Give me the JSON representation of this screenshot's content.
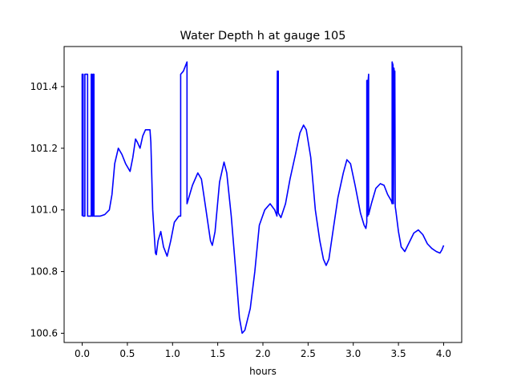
{
  "chart_data": {
    "type": "line",
    "title": "Water Depth h at gauge 105",
    "xlabel": "hours",
    "ylabel": "",
    "xlim": [
      -0.2,
      4.2
    ],
    "ylim": [
      100.57,
      101.53
    ],
    "x_ticks": [
      {
        "value": 0.0,
        "label": "0.0"
      },
      {
        "value": 0.5,
        "label": "0.5"
      },
      {
        "value": 1.0,
        "label": "1.0"
      },
      {
        "value": 1.5,
        "label": "1.5"
      },
      {
        "value": 2.0,
        "label": "2.0"
      },
      {
        "value": 2.5,
        "label": "2.5"
      },
      {
        "value": 3.0,
        "label": "3.0"
      },
      {
        "value": 3.5,
        "label": "3.5"
      },
      {
        "value": 4.0,
        "label": "4.0"
      }
    ],
    "y_ticks": [
      {
        "value": 100.6,
        "label": "100.6"
      },
      {
        "value": 100.8,
        "label": "100.8"
      },
      {
        "value": 101.0,
        "label": "101.0"
      },
      {
        "value": 101.2,
        "label": "101.2"
      },
      {
        "value": 101.4,
        "label": "101.4"
      }
    ],
    "grid": false,
    "legend": "none",
    "series": [
      {
        "color": "#0000ff",
        "points": [
          [
            0.0,
            100.98
          ],
          [
            0.0,
            101.44
          ],
          [
            0.01,
            101.44
          ],
          [
            0.01,
            100.98
          ],
          [
            0.03,
            100.98
          ],
          [
            0.03,
            101.44
          ],
          [
            0.06,
            101.44
          ],
          [
            0.06,
            100.98
          ],
          [
            0.1,
            100.98
          ],
          [
            0.1,
            101.44
          ],
          [
            0.11,
            101.44
          ],
          [
            0.11,
            100.98
          ],
          [
            0.12,
            100.98
          ],
          [
            0.12,
            101.44
          ],
          [
            0.13,
            101.44
          ],
          [
            0.13,
            100.98
          ],
          [
            0.2,
            100.98
          ],
          [
            0.25,
            100.985
          ],
          [
            0.3,
            101.0
          ],
          [
            0.33,
            101.05
          ],
          [
            0.36,
            101.15
          ],
          [
            0.4,
            101.2
          ],
          [
            0.44,
            101.18
          ],
          [
            0.48,
            101.15
          ],
          [
            0.53,
            101.125
          ],
          [
            0.56,
            101.17
          ],
          [
            0.59,
            101.23
          ],
          [
            0.61,
            101.22
          ],
          [
            0.64,
            101.2
          ],
          [
            0.67,
            101.24
          ],
          [
            0.7,
            101.26
          ],
          [
            0.75,
            101.26
          ],
          [
            0.76,
            101.22
          ],
          [
            0.78,
            101.0
          ],
          [
            0.81,
            100.86
          ],
          [
            0.82,
            100.855
          ],
          [
            0.84,
            100.9
          ],
          [
            0.87,
            100.93
          ],
          [
            0.9,
            100.88
          ],
          [
            0.94,
            100.85
          ],
          [
            0.98,
            100.9
          ],
          [
            1.02,
            100.96
          ],
          [
            1.07,
            100.98
          ],
          [
            1.08,
            100.98
          ],
          [
            1.09,
            100.98
          ],
          [
            1.09,
            101.44
          ],
          [
            1.12,
            101.45
          ],
          [
            1.16,
            101.48
          ],
          [
            1.16,
            101.02
          ],
          [
            1.22,
            101.08
          ],
          [
            1.28,
            101.12
          ],
          [
            1.32,
            101.1
          ],
          [
            1.37,
            101.0
          ],
          [
            1.42,
            100.9
          ],
          [
            1.44,
            100.885
          ],
          [
            1.47,
            100.93
          ],
          [
            1.52,
            101.09
          ],
          [
            1.57,
            101.155
          ],
          [
            1.6,
            101.12
          ],
          [
            1.65,
            100.98
          ],
          [
            1.7,
            100.8
          ],
          [
            1.74,
            100.65
          ],
          [
            1.77,
            100.6
          ],
          [
            1.8,
            100.61
          ],
          [
            1.86,
            100.68
          ],
          [
            1.91,
            100.8
          ],
          [
            1.96,
            100.95
          ],
          [
            2.02,
            101.0
          ],
          [
            2.08,
            101.02
          ],
          [
            2.13,
            101.0
          ],
          [
            2.155,
            100.98
          ],
          [
            2.16,
            101.45
          ],
          [
            2.17,
            101.45
          ],
          [
            2.17,
            100.99
          ],
          [
            2.2,
            100.975
          ],
          [
            2.25,
            101.02
          ],
          [
            2.3,
            101.1
          ],
          [
            2.36,
            101.18
          ],
          [
            2.41,
            101.25
          ],
          [
            2.45,
            101.275
          ],
          [
            2.48,
            101.26
          ],
          [
            2.53,
            101.17
          ],
          [
            2.58,
            101.0
          ],
          [
            2.63,
            100.9
          ],
          [
            2.67,
            100.84
          ],
          [
            2.7,
            100.82
          ],
          [
            2.73,
            100.84
          ],
          [
            2.78,
            100.94
          ],
          [
            2.83,
            101.04
          ],
          [
            2.89,
            101.12
          ],
          [
            2.93,
            101.163
          ],
          [
            2.97,
            101.15
          ],
          [
            3.02,
            101.08
          ],
          [
            3.08,
            100.99
          ],
          [
            3.12,
            100.95
          ],
          [
            3.14,
            100.94
          ],
          [
            3.15,
            100.96
          ],
          [
            3.15,
            101.42
          ],
          [
            3.155,
            101.42
          ],
          [
            3.16,
            100.98
          ],
          [
            3.165,
            101.42
          ],
          [
            3.17,
            101.44
          ],
          [
            3.17,
            100.985
          ],
          [
            3.2,
            101.02
          ],
          [
            3.25,
            101.07
          ],
          [
            3.3,
            101.085
          ],
          [
            3.34,
            101.08
          ],
          [
            3.38,
            101.05
          ],
          [
            3.42,
            101.03
          ],
          [
            3.43,
            101.02
          ],
          [
            3.43,
            101.48
          ],
          [
            3.44,
            101.47
          ],
          [
            3.445,
            101.02
          ],
          [
            3.45,
            101.46
          ],
          [
            3.455,
            101.44
          ],
          [
            3.46,
            101.45
          ],
          [
            3.465,
            101.01
          ],
          [
            3.47,
            101.0
          ],
          [
            3.5,
            100.93
          ],
          [
            3.53,
            100.88
          ],
          [
            3.57,
            100.865
          ],
          [
            3.62,
            100.895
          ],
          [
            3.67,
            100.925
          ],
          [
            3.72,
            100.935
          ],
          [
            3.77,
            100.92
          ],
          [
            3.82,
            100.89
          ],
          [
            3.87,
            100.875
          ],
          [
            3.92,
            100.865
          ],
          [
            3.96,
            100.86
          ],
          [
            3.98,
            100.87
          ],
          [
            4.0,
            100.885
          ]
        ]
      }
    ]
  }
}
